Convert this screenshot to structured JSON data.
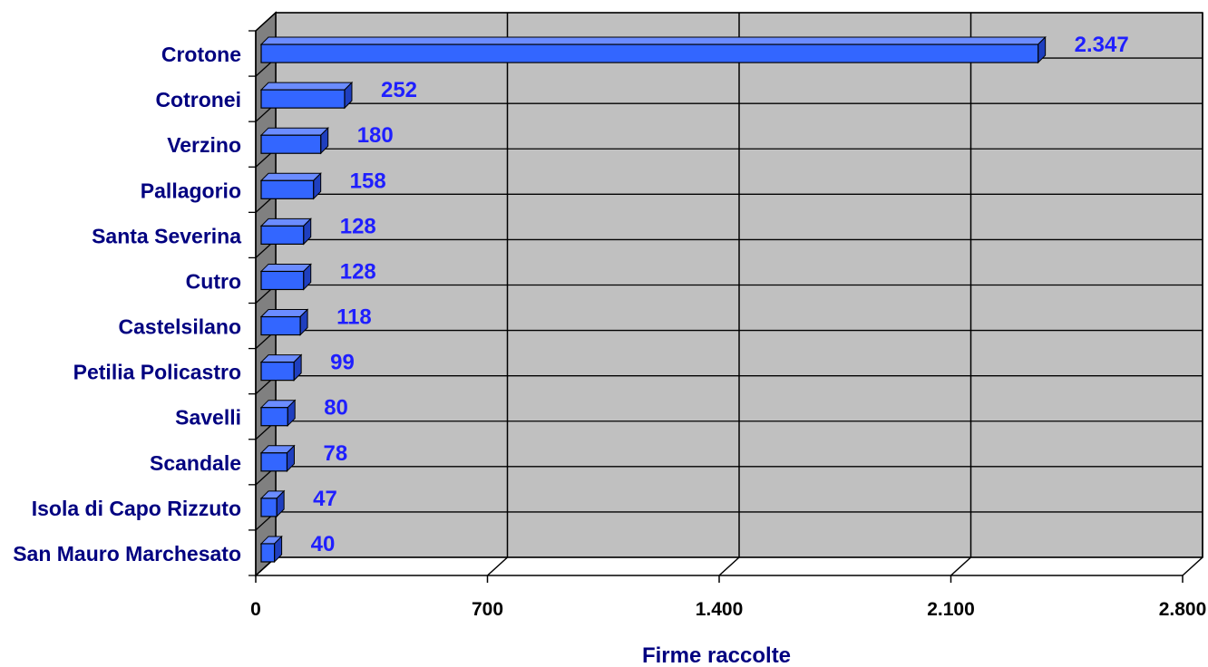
{
  "chart_data": {
    "type": "bar",
    "orientation": "horizontal",
    "style": "3d",
    "categories": [
      "Crotone",
      "Cotronei",
      "Verzino",
      "Pallagorio",
      "Santa Severina",
      "Cutro",
      "Castelsilano",
      "Petilia Policastro",
      "Savelli",
      "Scandale",
      "Isola di Capo Rizzuto",
      "San Mauro Marchesato"
    ],
    "values": [
      2347,
      252,
      180,
      158,
      128,
      128,
      118,
      99,
      80,
      78,
      47,
      40
    ],
    "value_labels": [
      "2.347",
      "252",
      "180",
      "158",
      "128",
      "128",
      "118",
      "99",
      "80",
      "78",
      "47",
      "40"
    ],
    "title": "",
    "xlabel": "Firme raccolte",
    "ylabel": "",
    "xlim": [
      0,
      2800
    ],
    "x_ticks": [
      0,
      700,
      1400,
      2100,
      2800
    ],
    "x_tick_labels": [
      "0",
      "700",
      "1.400",
      "2.100",
      "2.800"
    ],
    "grid": true,
    "legend": "none",
    "colors": {
      "bar_front": "#3366ff",
      "bar_top": "#6b8cff",
      "bar_side": "#1f3fbf",
      "bar_edge": "#000000",
      "plot_background": "#c0c0c0",
      "side_wall": "#808080",
      "category_text": "#000080",
      "value_text": "#1f1fff",
      "tick_text": "#000000",
      "axis_title_text": "#000080"
    }
  }
}
